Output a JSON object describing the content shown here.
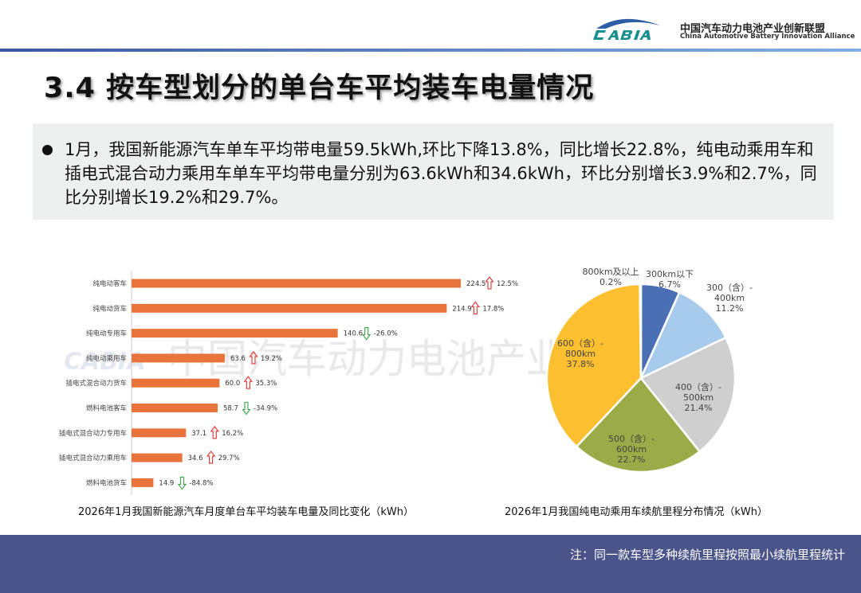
{
  "header": {
    "logo_text": "CABIA",
    "org_cn": "中国汽车动力电池产业创新联盟",
    "org_en": "China Automotive Battery Innovation Alliance"
  },
  "title": "3.4 按车型划分的单台车平均装车电量情况",
  "summary": "1月，我国新能源汽车单车平均带电量59.5kWh,环比下降13.8%，同比增长22.8%，纯电动乘用车和插电式混合动力乘用车单车平均带电量分别为63.6kWh和34.6kWh，环比分别增长3.9%和2.7%，同比分别增长19.2%和29.7%。",
  "watermark": "中国汽车动力电池产业创新联盟",
  "chart_data": [
    {
      "type": "bar",
      "orientation": "horizontal",
      "title": "2026年1月我国新能源汽车月度单台车平均装车电量及同比变化（kWh）",
      "categories": [
        "纯电动客车",
        "纯电动货车",
        "纯电动专用车",
        "纯电动乘用车",
        "插电式混合动力货车",
        "燃料电池客车",
        "插电式混合动力专用车",
        "插电式混合动力乘用车",
        "燃料电池货车"
      ],
      "values": [
        224.5,
        214.9,
        140.6,
        63.6,
        60.0,
        58.7,
        37.1,
        34.6,
        14.9
      ],
      "yoy_change": [
        "12.5%",
        "17.8%",
        "-26.0%",
        "19.2%",
        "35.3%",
        "-34.9%",
        "16.2%",
        "29.7%",
        "-84.8%"
      ],
      "yoy_direction": [
        "up",
        "up",
        "down",
        "up",
        "up",
        "down",
        "up",
        "up",
        "down"
      ],
      "bar_color": "#e8743b",
      "up_color": "#e0322d",
      "down_color": "#3aa645"
    },
    {
      "type": "pie",
      "title": "2026年1月我国纯电动乘用车续航里程分布情况（kWh）",
      "slices": [
        {
          "label": [
            "300km以下"
          ],
          "value": 6.7,
          "pct": "6.7%",
          "color": "#4a6fb5"
        },
        {
          "label": [
            "300（含）-",
            "400km"
          ],
          "value": 11.2,
          "pct": "11.2%",
          "color": "#a7cbec"
        },
        {
          "label": [
            "400（含）-",
            "500km"
          ],
          "value": 21.4,
          "pct": "21.4%",
          "color": "#cfcfcf"
        },
        {
          "label": [
            "500（含）-",
            "600km"
          ],
          "value": 22.7,
          "pct": "22.7%",
          "color": "#9aab48"
        },
        {
          "label": [
            "600（含）-",
            "800km"
          ],
          "value": 37.8,
          "pct": "37.8%",
          "color": "#fcbf2f"
        },
        {
          "label": [
            "800km及以上"
          ],
          "value": 0.2,
          "pct": "0.2%",
          "color": "#f07a2f"
        }
      ]
    }
  ],
  "footer_note": "注：同一款车型多种续航里程按照最小续航里程统计"
}
